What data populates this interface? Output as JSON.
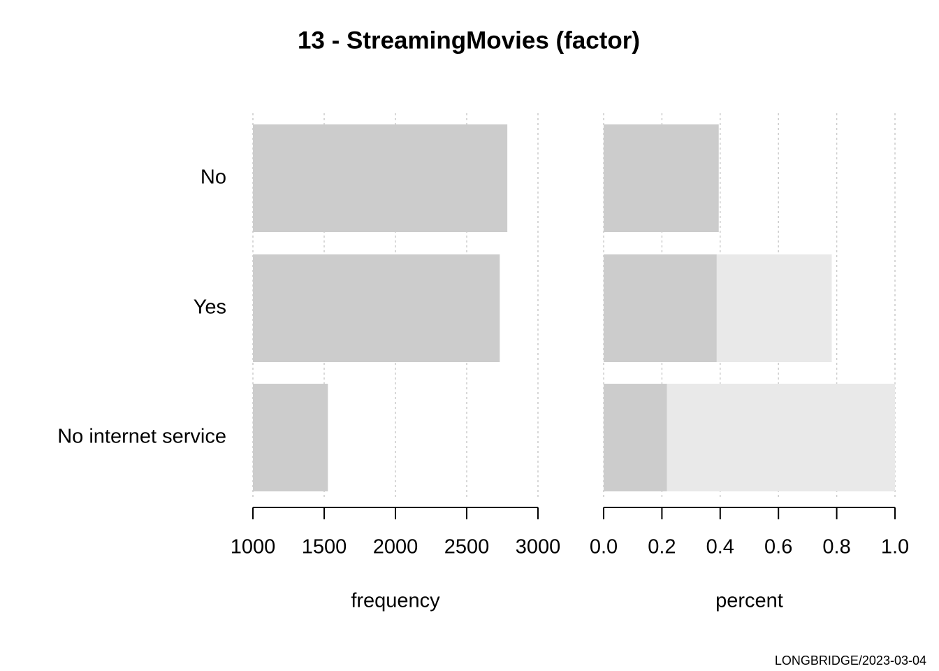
{
  "title": "13 - StreamingMovies (factor)",
  "footer": "LONGBRIDGE/2023-03-04",
  "chart_data": [
    {
      "type": "bar",
      "categories": [
        "No",
        "Yes",
        "No internet service"
      ],
      "values": [
        2785,
        2732,
        1526
      ],
      "color": "#cccccc",
      "xlim": [
        1000,
        3000
      ],
      "xticks": [
        1000,
        1500,
        2000,
        2500,
        3000
      ],
      "xlabel": "frequency",
      "grid": true
    },
    {
      "type": "percent",
      "values": [
        0.395,
        0.388,
        0.217
      ],
      "color": "#cccccc",
      "stack_color": "#e9e9e9",
      "xlim": [
        0,
        1
      ],
      "xticks": [
        {
          "value": 0,
          "label": "0.0"
        },
        0.2,
        0.4,
        0.6,
        0.8,
        {
          "value": 1,
          "label": "1.0"
        }
      ],
      "xlabel": "percent",
      "grid": true
    }
  ]
}
